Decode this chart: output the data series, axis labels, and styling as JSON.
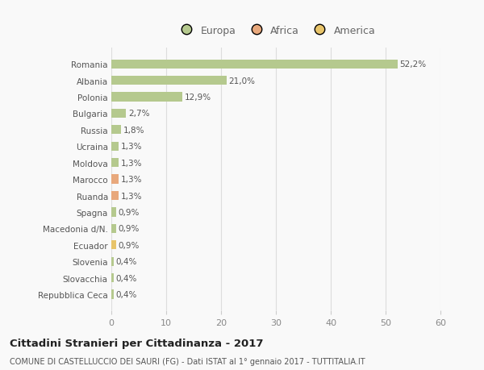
{
  "categories": [
    "Repubblica Ceca",
    "Slovacchia",
    "Slovenia",
    "Ecuador",
    "Macedonia d/N.",
    "Spagna",
    "Ruanda",
    "Marocco",
    "Moldova",
    "Ucraina",
    "Russia",
    "Bulgaria",
    "Polonia",
    "Albania",
    "Romania"
  ],
  "values": [
    0.4,
    0.4,
    0.4,
    0.9,
    0.9,
    0.9,
    1.3,
    1.3,
    1.3,
    1.3,
    1.8,
    2.7,
    12.9,
    21.0,
    52.2
  ],
  "colors": [
    "#b5c98e",
    "#b5c98e",
    "#b5c98e",
    "#e8c46a",
    "#b5c98e",
    "#b5c98e",
    "#e8a87c",
    "#e8a87c",
    "#b5c98e",
    "#b5c98e",
    "#b5c98e",
    "#b5c98e",
    "#b5c98e",
    "#b5c98e",
    "#b5c98e"
  ],
  "labels": [
    "0,4%",
    "0,4%",
    "0,4%",
    "0,9%",
    "0,9%",
    "0,9%",
    "1,3%",
    "1,3%",
    "1,3%",
    "1,3%",
    "1,8%",
    "2,7%",
    "12,9%",
    "21,0%",
    "52,2%"
  ],
  "legend": [
    {
      "label": "Europa",
      "color": "#b5c98e"
    },
    {
      "label": "Africa",
      "color": "#e8a87c"
    },
    {
      "label": "America",
      "color": "#e8c46a"
    }
  ],
  "title": "Cittadini Stranieri per Cittadinanza - 2017",
  "subtitle": "COMUNE DI CASTELLUCCIO DEI SAURI (FG) - Dati ISTAT al 1° gennaio 2017 - TUTTITALIA.IT",
  "xlim": [
    0,
    60
  ],
  "xticks": [
    0,
    10,
    20,
    30,
    40,
    50,
    60
  ],
  "bg_color": "#f9f9f9",
  "grid_color": "#dddddd"
}
